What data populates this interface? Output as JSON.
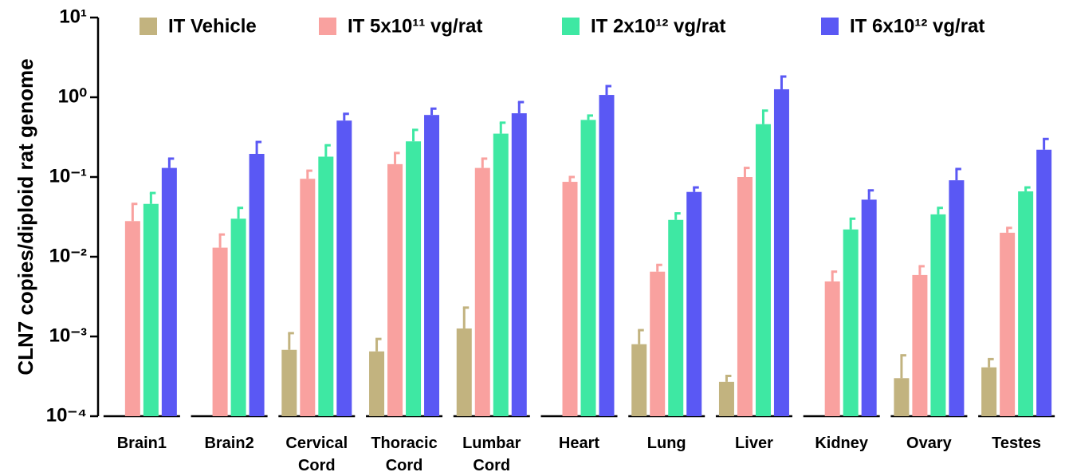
{
  "chart_data": {
    "type": "bar",
    "ylabel": "CLN7 copies/diploid rat genome",
    "log_scale": true,
    "ylim": [
      0.0001,
      10
    ],
    "yticks": [
      {
        "value": 0.0001,
        "label": "10⁻⁴"
      },
      {
        "value": 0.001,
        "label": "10⁻³"
      },
      {
        "value": 0.01,
        "label": "10⁻²"
      },
      {
        "value": 0.1,
        "label": "10⁻¹"
      },
      {
        "value": 1,
        "label": "10⁰"
      },
      {
        "value": 10,
        "label": "10¹"
      }
    ],
    "legend": "top",
    "categories": [
      "Brain1",
      "Brain2",
      "Cervical Cord",
      "Thoracic Cord",
      "Lumbar Cord",
      "Heart",
      "Lung",
      "Liver",
      "Kidney",
      "Ovary",
      "Testes"
    ],
    "series": [
      {
        "name": "IT Vehicle",
        "color": "#c2b37f",
        "values": [
          null,
          null,
          0.00068,
          0.00065,
          0.00126,
          null,
          0.0008,
          0.00027,
          null,
          0.0003,
          0.00041
        ],
        "errors": [
          null,
          null,
          0.00042,
          0.00028,
          0.00104,
          null,
          0.0004,
          5e-05,
          null,
          0.00028,
          0.00011
        ]
      },
      {
        "name": "IT 5x10¹¹ vg/rat",
        "color": "#f9a19f",
        "values": [
          0.028,
          0.013,
          0.095,
          0.145,
          0.13,
          0.087,
          0.0065,
          0.1,
          0.0049,
          0.0059,
          0.02
        ],
        "errors": [
          0.018,
          0.006,
          0.025,
          0.055,
          0.04,
          0.013,
          0.0014,
          0.03,
          0.0016,
          0.0017,
          0.003
        ]
      },
      {
        "name": "IT 2x10¹² vg/rat",
        "color": "#3ee8a3",
        "values": [
          0.046,
          0.03,
          0.18,
          0.28,
          0.35,
          0.52,
          0.029,
          0.46,
          0.022,
          0.034,
          0.066
        ],
        "errors": [
          0.017,
          0.011,
          0.07,
          0.11,
          0.13,
          0.07,
          0.006,
          0.22,
          0.008,
          0.007,
          0.008
        ]
      },
      {
        "name": "IT 6x10¹² vg/rat",
        "color": "#5a58f4",
        "values": [
          0.13,
          0.195,
          0.51,
          0.6,
          0.63,
          1.07,
          0.065,
          1.26,
          0.052,
          0.091,
          0.22
        ],
        "errors": [
          0.04,
          0.08,
          0.11,
          0.12,
          0.24,
          0.31,
          0.009,
          0.56,
          0.016,
          0.035,
          0.08
        ]
      }
    ]
  }
}
